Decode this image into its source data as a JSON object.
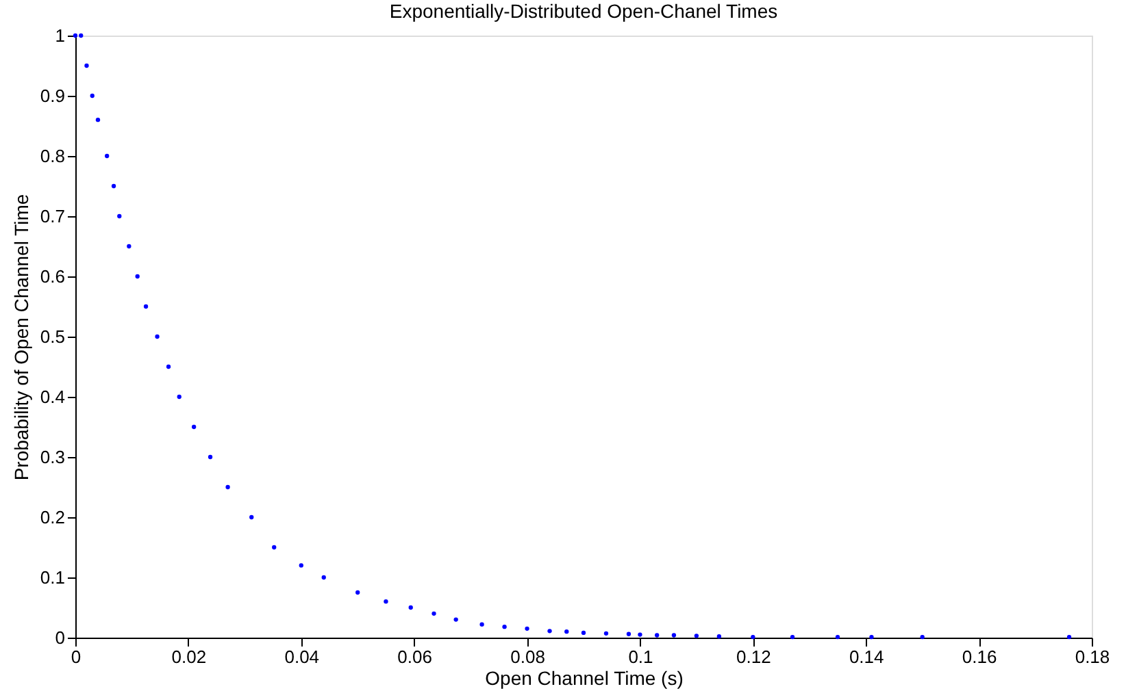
{
  "chart_data": {
    "type": "scatter",
    "title": "Exponentially-Distributed Open-Chanel Times",
    "xlabel": "Open Channel Time (s)",
    "ylabel": "Probability of Open Channel Time",
    "marker": "circle",
    "grid": false,
    "legend": false,
    "x": [
      0,
      0.001,
      0.002,
      0.003,
      0.004,
      0.0056,
      0.0068,
      0.0078,
      0.0095,
      0.011,
      0.0125,
      0.0145,
      0.0165,
      0.0184,
      0.021,
      0.0239,
      0.027,
      0.0312,
      0.0352,
      0.04,
      0.044,
      0.05,
      0.055,
      0.0594,
      0.0635,
      0.0674,
      0.072,
      0.076,
      0.08,
      0.084,
      0.087,
      0.09,
      0.094,
      0.098,
      0.1,
      0.103,
      0.106,
      0.11,
      0.114,
      0.12,
      0.127,
      0.135,
      0.141,
      0.15,
      0.176
    ],
    "series": [
      {
        "color": "#0000ff",
        "values": [
          1,
          1,
          0.95,
          0.9,
          0.86,
          0.8,
          0.75,
          0.7,
          0.65,
          0.6,
          0.55,
          0.5,
          0.45,
          0.4,
          0.35,
          0.3,
          0.25,
          0.2,
          0.15,
          0.12,
          0.1,
          0.075,
          0.06,
          0.05,
          0.04,
          0.03,
          0.022,
          0.018,
          0.015,
          0.011,
          0.01,
          0.008,
          0.007,
          0.006,
          0.005,
          0.004,
          0.004,
          0.003,
          0.002,
          0.001,
          0.001,
          0.001,
          0.001,
          0.001,
          0.001
        ]
      }
    ],
    "xlim": [
      0,
      0.18
    ],
    "xticks": [
      0,
      0.02,
      0.04,
      0.06,
      0.08,
      0.1,
      0.12,
      0.14,
      0.16,
      0.18
    ],
    "ylim": [
      0,
      1
    ],
    "yticks": [
      0,
      0.1,
      0.2,
      0.3,
      0.4,
      0.5,
      0.6,
      0.7,
      0.8,
      0.9,
      1
    ]
  }
}
